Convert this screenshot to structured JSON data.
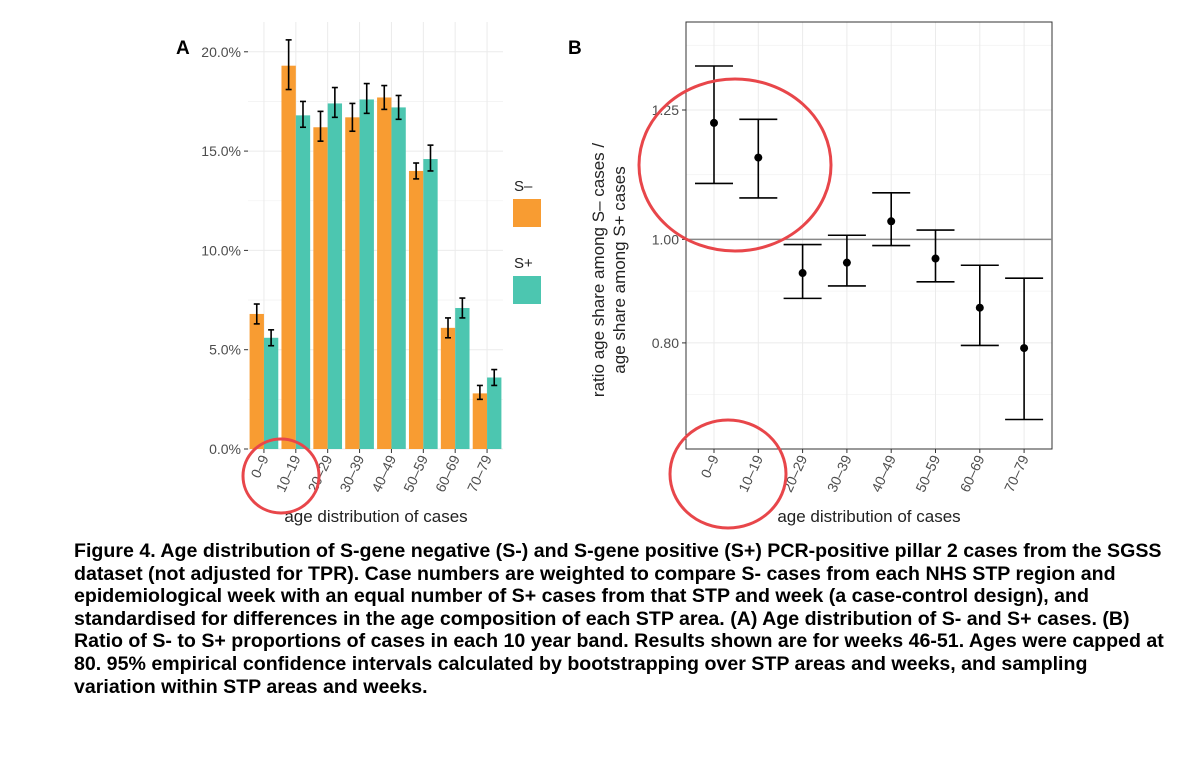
{
  "caption": "Figure 4. Age distribution of S-gene negative (S-) and S-gene positive (S+) PCR-positive pillar 2 cases from the SGSS dataset (not adjusted for TPR). Case numbers are weighted to compare S- cases from each NHS STP region and epidemiological week with an equal number of S+ cases from that STP and week (a case-control design), and standardised for differences in the age composition of each STP area. (A) Age distribution of S- and S+ cases. (B) Ratio of S- to S+ proportions of cases in each 10 year band. Results shown are for weeks 46-51. Ages were capped at 80. 95% empirical confidence intervals calculated by bootstrapping over STP areas and weeks, and sampling variation within STP areas and weeks.",
  "colors": {
    "s_minus": "#F89C32",
    "s_plus": "#4CC6B0",
    "highlight_circle": "#E8464A",
    "grid": "#EBEBEB",
    "reference_line": "#888888"
  },
  "chart_data": [
    {
      "panel_label": "A",
      "type": "bar",
      "title": "",
      "xlabel": "age distribution of cases",
      "ylabel": "",
      "categories": [
        "0–9",
        "10–19",
        "20–29",
        "30–39",
        "40–49",
        "50–59",
        "60–69",
        "70–79"
      ],
      "ylim": [
        0,
        0.215
      ],
      "yticks": [
        0,
        0.05,
        0.1,
        0.15,
        0.2
      ],
      "ytick_labels": [
        "0.0%",
        "5.0%",
        "10.0%",
        "15.0%",
        "20.0%"
      ],
      "legend_title": "",
      "legend_position": "right",
      "grid": true,
      "series": [
        {
          "name": "S–",
          "color_key": "s_minus",
          "values": [
            0.068,
            0.193,
            0.162,
            0.167,
            0.177,
            0.14,
            0.061,
            0.028
          ],
          "ci_low": [
            0.063,
            0.181,
            0.155,
            0.16,
            0.171,
            0.136,
            0.056,
            0.025
          ],
          "ci_high": [
            0.073,
            0.206,
            0.17,
            0.174,
            0.183,
            0.144,
            0.066,
            0.032
          ]
        },
        {
          "name": "S+",
          "color_key": "s_plus",
          "values": [
            0.056,
            0.168,
            0.174,
            0.176,
            0.172,
            0.146,
            0.071,
            0.036
          ],
          "ci_low": [
            0.052,
            0.162,
            0.167,
            0.169,
            0.166,
            0.14,
            0.066,
            0.032
          ],
          "ci_high": [
            0.06,
            0.175,
            0.182,
            0.184,
            0.178,
            0.153,
            0.076,
            0.04
          ]
        }
      ]
    },
    {
      "panel_label": "B",
      "type": "scatter",
      "title": "",
      "xlabel": "age distribution of cases",
      "ylabel_line1": "ratio age share among S– cases /",
      "ylabel_line2": "age share among S+ cases",
      "categories": [
        "0–9",
        "10–19",
        "20–29",
        "30–39",
        "40–49",
        "50–59",
        "60–69",
        "70–79"
      ],
      "ylim": [
        0.595,
        1.42
      ],
      "yticks": [
        0.8,
        1.0,
        1.25
      ],
      "ytick_labels": [
        "0.80",
        "1.00",
        "1.25"
      ],
      "reference_line": 1.0,
      "grid": true,
      "values": [
        1.225,
        1.158,
        0.935,
        0.955,
        1.035,
        0.963,
        0.868,
        0.79
      ],
      "ci_low": [
        1.108,
        1.08,
        0.886,
        0.91,
        0.988,
        0.918,
        0.795,
        0.652
      ],
      "ci_high": [
        1.335,
        1.232,
        0.99,
        1.008,
        1.09,
        1.018,
        0.95,
        0.925
      ]
    }
  ]
}
